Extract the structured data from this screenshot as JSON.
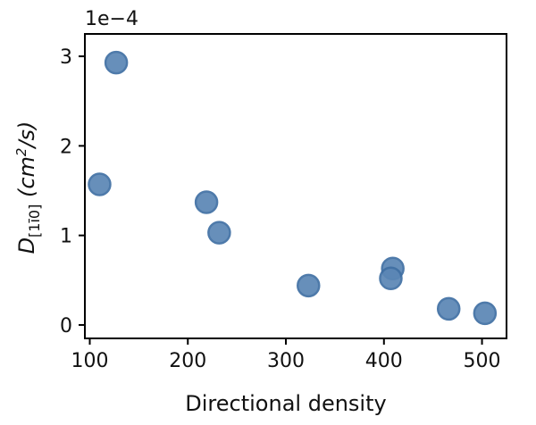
{
  "chart_data": {
    "type": "scatter",
    "title": "",
    "xlabel": "Directional density",
    "ylabel": {
      "symbol": "D",
      "subscript": "[1ī0]",
      "units_prefix": " (cm",
      "units_sup": "2",
      "units_suffix": "/s)"
    },
    "offset_text": "1e−4",
    "xlim": [
      95,
      525
    ],
    "ylim": [
      -0.15,
      3.25
    ],
    "xticks": [
      100,
      200,
      300,
      400,
      500
    ],
    "yticks": [
      0,
      1,
      2,
      3
    ],
    "grid": false,
    "marker_color": "#5b86b5",
    "points": [
      {
        "x": 127,
        "y": 2.93
      },
      {
        "x": 110,
        "y": 1.57
      },
      {
        "x": 219,
        "y": 1.37
      },
      {
        "x": 232,
        "y": 1.03
      },
      {
        "x": 323,
        "y": 0.44
      },
      {
        "x": 409,
        "y": 0.63
      },
      {
        "x": 407,
        "y": 0.52
      },
      {
        "x": 466,
        "y": 0.18
      },
      {
        "x": 503,
        "y": 0.13
      }
    ]
  }
}
